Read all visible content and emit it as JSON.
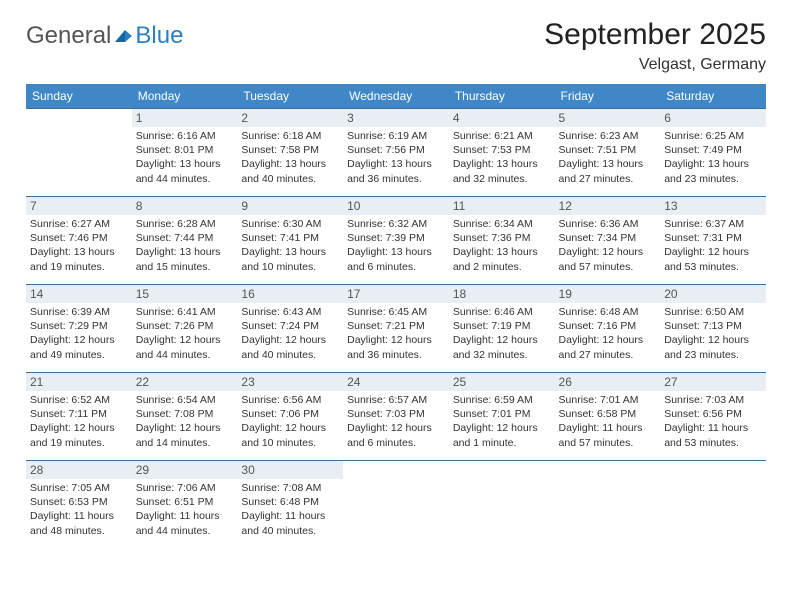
{
  "logo": {
    "general": "General",
    "blue": "Blue"
  },
  "title": "September 2025",
  "location": "Velgast, Germany",
  "colors": {
    "header_bg": "#3f87c7",
    "header_text": "#ffffff",
    "daynum_bg": "#e8eef3",
    "border": "#3f6d94",
    "logo_blue": "#2b7fbf"
  },
  "dow": [
    "Sunday",
    "Monday",
    "Tuesday",
    "Wednesday",
    "Thursday",
    "Friday",
    "Saturday"
  ],
  "weeks": [
    [
      null,
      {
        "n": "1",
        "sr": "6:16 AM",
        "ss": "8:01 PM",
        "dl": "13 hours and 44 minutes."
      },
      {
        "n": "2",
        "sr": "6:18 AM",
        "ss": "7:58 PM",
        "dl": "13 hours and 40 minutes."
      },
      {
        "n": "3",
        "sr": "6:19 AM",
        "ss": "7:56 PM",
        "dl": "13 hours and 36 minutes."
      },
      {
        "n": "4",
        "sr": "6:21 AM",
        "ss": "7:53 PM",
        "dl": "13 hours and 32 minutes."
      },
      {
        "n": "5",
        "sr": "6:23 AM",
        "ss": "7:51 PM",
        "dl": "13 hours and 27 minutes."
      },
      {
        "n": "6",
        "sr": "6:25 AM",
        "ss": "7:49 PM",
        "dl": "13 hours and 23 minutes."
      }
    ],
    [
      {
        "n": "7",
        "sr": "6:27 AM",
        "ss": "7:46 PM",
        "dl": "13 hours and 19 minutes."
      },
      {
        "n": "8",
        "sr": "6:28 AM",
        "ss": "7:44 PM",
        "dl": "13 hours and 15 minutes."
      },
      {
        "n": "9",
        "sr": "6:30 AM",
        "ss": "7:41 PM",
        "dl": "13 hours and 10 minutes."
      },
      {
        "n": "10",
        "sr": "6:32 AM",
        "ss": "7:39 PM",
        "dl": "13 hours and 6 minutes."
      },
      {
        "n": "11",
        "sr": "6:34 AM",
        "ss": "7:36 PM",
        "dl": "13 hours and 2 minutes."
      },
      {
        "n": "12",
        "sr": "6:36 AM",
        "ss": "7:34 PM",
        "dl": "12 hours and 57 minutes."
      },
      {
        "n": "13",
        "sr": "6:37 AM",
        "ss": "7:31 PM",
        "dl": "12 hours and 53 minutes."
      }
    ],
    [
      {
        "n": "14",
        "sr": "6:39 AM",
        "ss": "7:29 PM",
        "dl": "12 hours and 49 minutes."
      },
      {
        "n": "15",
        "sr": "6:41 AM",
        "ss": "7:26 PM",
        "dl": "12 hours and 44 minutes."
      },
      {
        "n": "16",
        "sr": "6:43 AM",
        "ss": "7:24 PM",
        "dl": "12 hours and 40 minutes."
      },
      {
        "n": "17",
        "sr": "6:45 AM",
        "ss": "7:21 PM",
        "dl": "12 hours and 36 minutes."
      },
      {
        "n": "18",
        "sr": "6:46 AM",
        "ss": "7:19 PM",
        "dl": "12 hours and 32 minutes."
      },
      {
        "n": "19",
        "sr": "6:48 AM",
        "ss": "7:16 PM",
        "dl": "12 hours and 27 minutes."
      },
      {
        "n": "20",
        "sr": "6:50 AM",
        "ss": "7:13 PM",
        "dl": "12 hours and 23 minutes."
      }
    ],
    [
      {
        "n": "21",
        "sr": "6:52 AM",
        "ss": "7:11 PM",
        "dl": "12 hours and 19 minutes."
      },
      {
        "n": "22",
        "sr": "6:54 AM",
        "ss": "7:08 PM",
        "dl": "12 hours and 14 minutes."
      },
      {
        "n": "23",
        "sr": "6:56 AM",
        "ss": "7:06 PM",
        "dl": "12 hours and 10 minutes."
      },
      {
        "n": "24",
        "sr": "6:57 AM",
        "ss": "7:03 PM",
        "dl": "12 hours and 6 minutes."
      },
      {
        "n": "25",
        "sr": "6:59 AM",
        "ss": "7:01 PM",
        "dl": "12 hours and 1 minute."
      },
      {
        "n": "26",
        "sr": "7:01 AM",
        "ss": "6:58 PM",
        "dl": "11 hours and 57 minutes."
      },
      {
        "n": "27",
        "sr": "7:03 AM",
        "ss": "6:56 PM",
        "dl": "11 hours and 53 minutes."
      }
    ],
    [
      {
        "n": "28",
        "sr": "7:05 AM",
        "ss": "6:53 PM",
        "dl": "11 hours and 48 minutes."
      },
      {
        "n": "29",
        "sr": "7:06 AM",
        "ss": "6:51 PM",
        "dl": "11 hours and 44 minutes."
      },
      {
        "n": "30",
        "sr": "7:08 AM",
        "ss": "6:48 PM",
        "dl": "11 hours and 40 minutes."
      },
      null,
      null,
      null,
      null
    ]
  ],
  "labels": {
    "sunrise": "Sunrise: ",
    "sunset": "Sunset: ",
    "daylight": "Daylight: "
  }
}
